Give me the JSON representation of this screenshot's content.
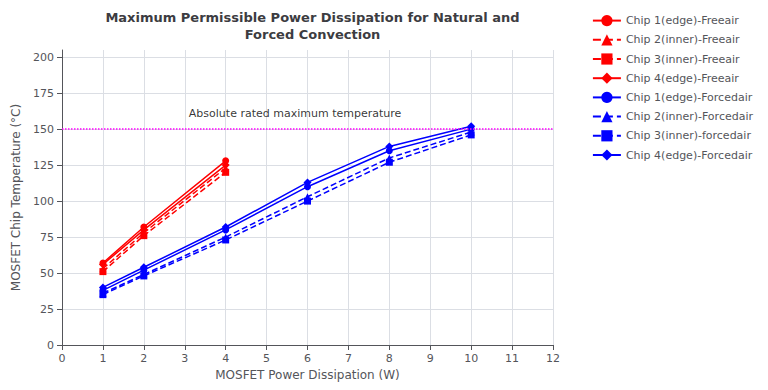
{
  "chart_data": {
    "type": "line",
    "title": "Maximum Permissible Power Dissipation for Natural and\nForced Convection",
    "x_label": "MOSFET Power Dissipation (W)",
    "y_label": "MOSFET Chip Temperature (°C)",
    "xlim": [
      0,
      12
    ],
    "ylim": [
      0.0,
      205.0
    ],
    "xticks": [
      0,
      1,
      2,
      3,
      4,
      5,
      6,
      7,
      8,
      9,
      10,
      11,
      12
    ],
    "yticks": [
      0,
      25,
      50,
      75,
      100,
      125,
      150,
      175,
      200
    ],
    "grid": true,
    "legend": "right",
    "hlines": [
      {
        "y": 150.0,
        "color": "#FF00FF",
        "line_style": "dotted"
      }
    ],
    "annotations": [
      {
        "text": "Absolute rated maximum temperature",
        "x": 3.1,
        "y": 157
      }
    ],
    "series": [
      {
        "name": "Chip 1(edge)-Freeair",
        "color": "#FF0000",
        "marker": "circle",
        "line_style": "solid",
        "x": [
          1,
          2,
          4
        ],
        "values": [
          57,
          82,
          128
        ]
      },
      {
        "name": "Chip 2(inner)-Freeair",
        "color": "#FF0000",
        "marker": "triangle",
        "line_style": "dashed",
        "x": [
          1,
          2,
          4
        ],
        "values": [
          53,
          78,
          123
        ]
      },
      {
        "name": "Chip 3(inner)-Freeair",
        "color": "#FF0000",
        "marker": "square",
        "line_style": "dashed",
        "x": [
          1,
          2,
          4
        ],
        "values": [
          51,
          76,
          120
        ]
      },
      {
        "name": "Chip 4(edge)-Freeair",
        "color": "#FF0000",
        "marker": "diamond",
        "line_style": "solid",
        "x": [
          1,
          2,
          4
        ],
        "values": [
          56,
          80,
          125
        ]
      },
      {
        "name": "Chip 1(edge)-Forcedair",
        "color": "#0000FF",
        "marker": "circle",
        "line_style": "solid",
        "x": [
          1,
          2,
          4,
          6,
          8,
          10
        ],
        "values": [
          38,
          52,
          80,
          110,
          135,
          150
        ]
      },
      {
        "name": "Chip 2(inner)-Forcedair",
        "color": "#0000FF",
        "marker": "triangle",
        "line_style": "dashed",
        "x": [
          1,
          2,
          4,
          6,
          8,
          10
        ],
        "values": [
          36,
          49,
          75,
          103,
          130,
          148
        ]
      },
      {
        "name": "Chip 3(inner)-forcedair",
        "color": "#0000FF",
        "marker": "square",
        "line_style": "dashed",
        "x": [
          1,
          2,
          4,
          6,
          8,
          10
        ],
        "values": [
          35,
          48,
          73,
          100,
          127,
          146
        ]
      },
      {
        "name": "Chip 4(edge)-Forcedair",
        "color": "#0000FF",
        "marker": "diamond",
        "line_style": "solid",
        "x": [
          1,
          2,
          4,
          6,
          8,
          10
        ],
        "values": [
          40,
          54,
          82,
          113,
          138,
          152
        ]
      }
    ]
  }
}
